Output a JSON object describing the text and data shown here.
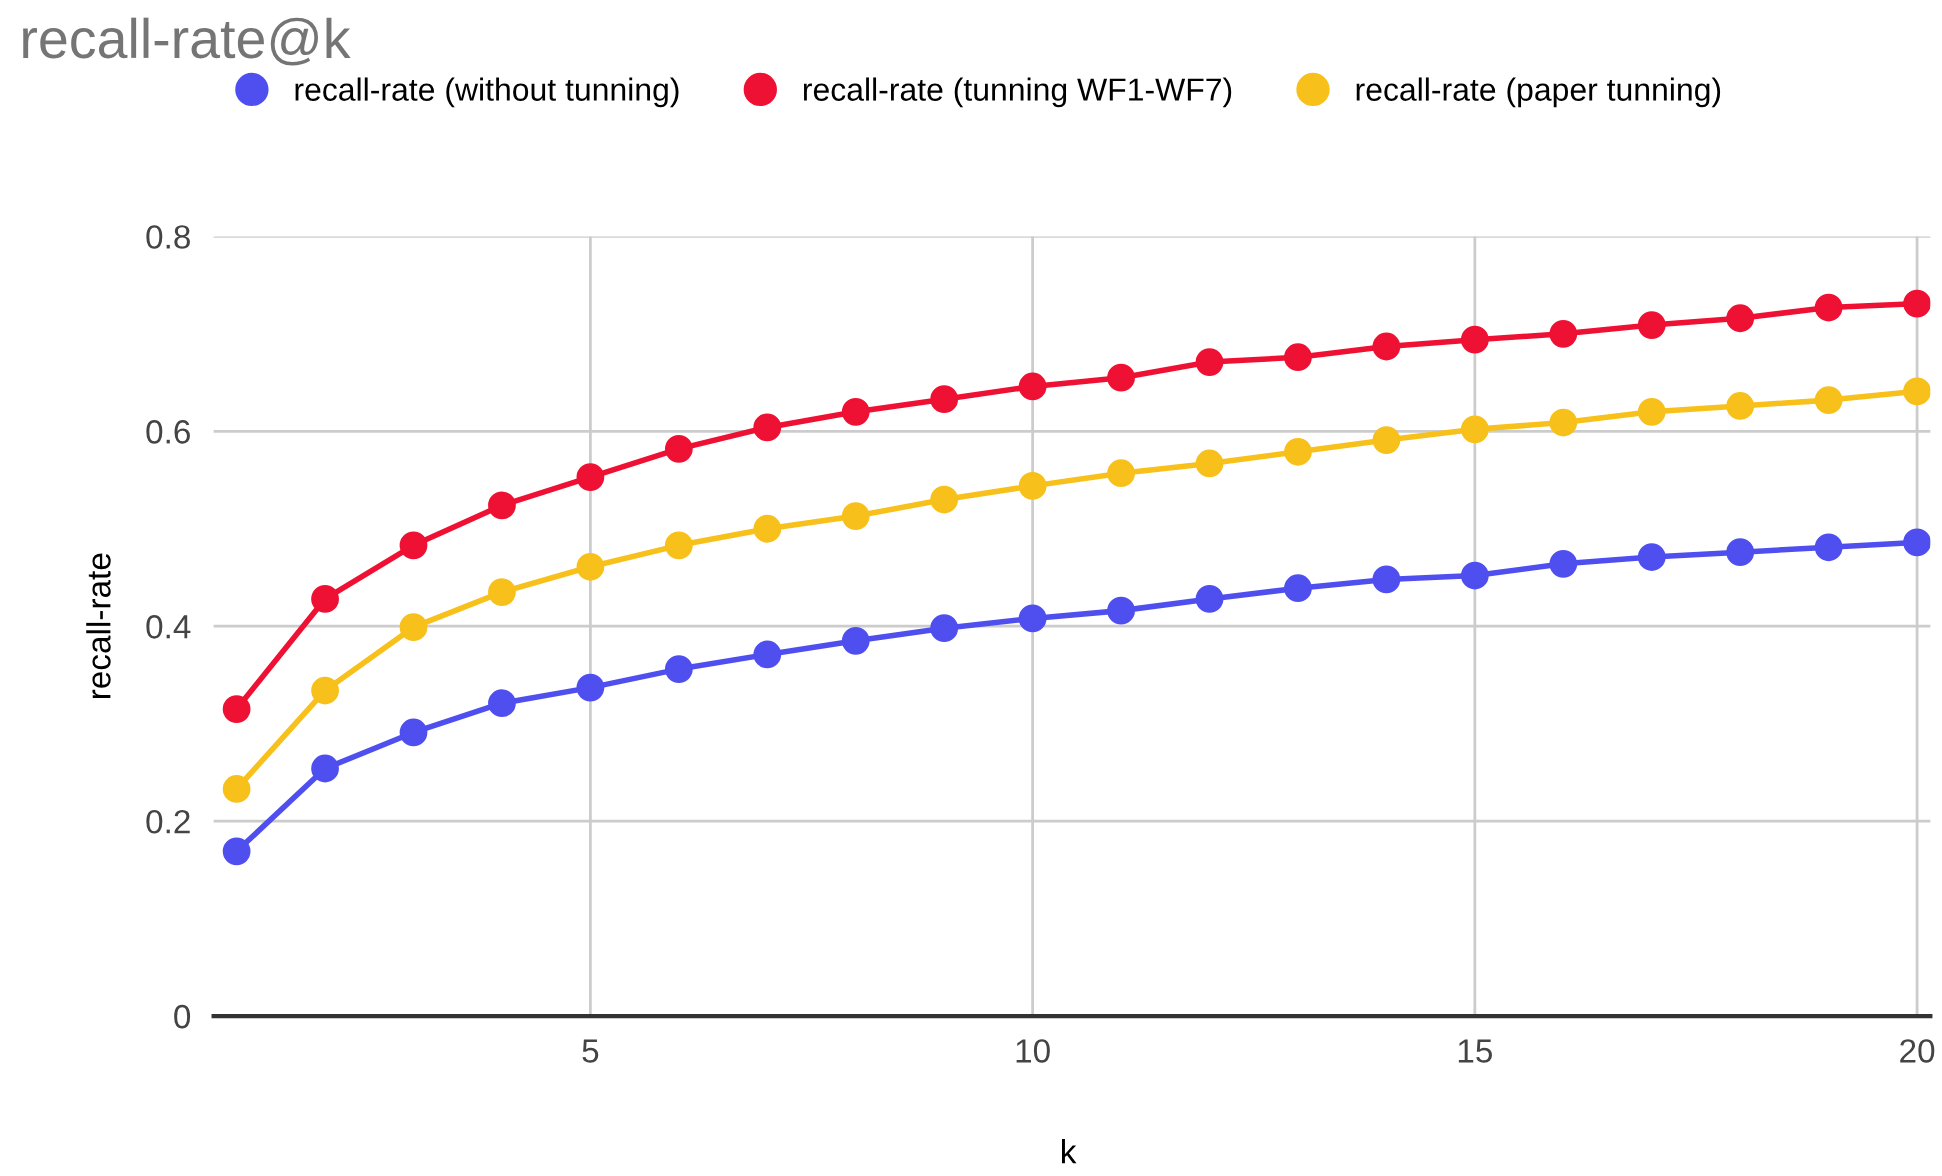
{
  "chart_data": {
    "type": "line",
    "title": "recall-rate@k",
    "xlabel": "k",
    "ylabel": "recall-rate",
    "x": [
      1,
      2,
      3,
      4,
      5,
      6,
      7,
      8,
      9,
      10,
      11,
      12,
      13,
      14,
      15,
      16,
      17,
      18,
      19,
      20
    ],
    "series": [
      {
        "name": "recall-rate (without tunning)",
        "color": "#4f4ff0",
        "values": [
          0.169,
          0.254,
          0.291,
          0.321,
          0.337,
          0.356,
          0.371,
          0.385,
          0.398,
          0.408,
          0.416,
          0.428,
          0.439,
          0.448,
          0.452,
          0.464,
          0.471,
          0.476,
          0.481,
          0.486
        ]
      },
      {
        "name": "recall-rate (tunning WF1-WF7)",
        "color": "#ee1133",
        "values": [
          0.315,
          0.428,
          0.483,
          0.524,
          0.553,
          0.582,
          0.604,
          0.62,
          0.633,
          0.646,
          0.655,
          0.671,
          0.676,
          0.687,
          0.694,
          0.7,
          0.709,
          0.716,
          0.727,
          0.731
        ]
      },
      {
        "name": "recall-rate (paper tunning)",
        "color": "#f7c01a",
        "values": [
          0.233,
          0.334,
          0.399,
          0.435,
          0.461,
          0.483,
          0.5,
          0.513,
          0.53,
          0.544,
          0.557,
          0.567,
          0.579,
          0.591,
          0.602,
          0.609,
          0.62,
          0.626,
          0.632,
          0.641
        ]
      }
    ],
    "xlim": [
      0.74,
      20.15
    ],
    "xticks": [
      5,
      10,
      15,
      20
    ],
    "ylim": [
      0,
      0.8
    ],
    "yticks": [
      0,
      0.2,
      0.4,
      0.6,
      0.8
    ],
    "grid": true,
    "legend": "top",
    "marker": "circle",
    "line_style": "solid"
  }
}
